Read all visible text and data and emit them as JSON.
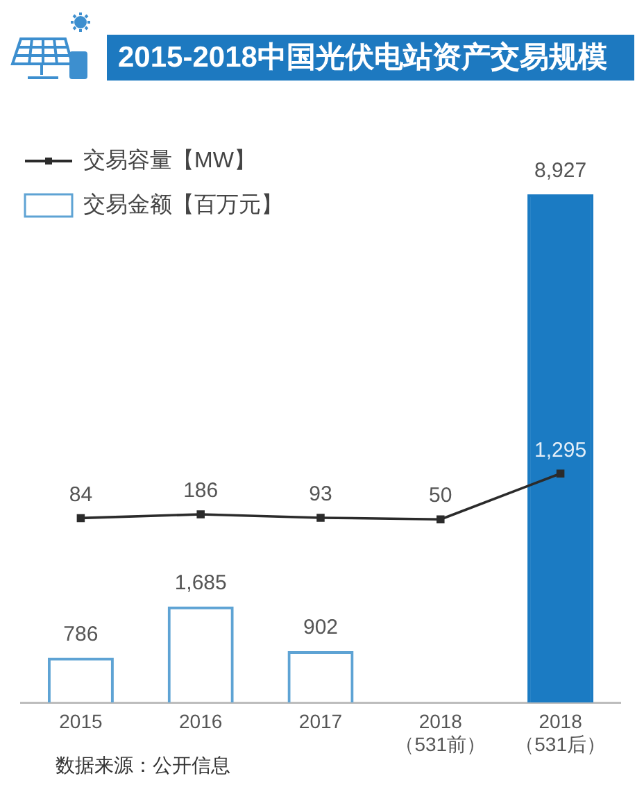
{
  "chart_data": {
    "type": "bar",
    "title": "2015-2018中国光伏电站资产交易规模",
    "categories": [
      "2015",
      "2016",
      "2017",
      "2018\n（531前）",
      "2018\n（531后）"
    ],
    "series": [
      {
        "name": "交易容量【MW】",
        "type": "line",
        "axis": "y2",
        "color": "#2b2b2b",
        "values": [
          84,
          186,
          93,
          50,
          1295
        ],
        "value_labels": [
          "84",
          "186",
          "93",
          "50",
          "1,295"
        ]
      },
      {
        "name": "交易金额【百万元】",
        "color": "#5ea3d4",
        "colors": [
          "#5ea3d4",
          "#5ea3d4",
          "#5ea3d4",
          "#5ea3d4",
          "#1b7bc3"
        ],
        "values": [
          786,
          1685,
          902,
          null,
          8927
        ],
        "value_labels": [
          "786",
          "1,685",
          "902",
          null,
          "8,927"
        ]
      }
    ],
    "tick_labels": "x",
    "grid": false,
    "legend": "top left",
    "marker": "square",
    "line_style": "solid",
    "annotations": [
      "数据来源：公开信息"
    ]
  }
}
